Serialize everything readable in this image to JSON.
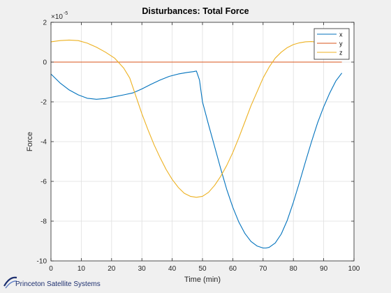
{
  "chart_data": {
    "type": "line",
    "title": "Disturbances: Total Force",
    "xlabel": "Time (min)",
    "ylabel": "Force",
    "y_exponent_label": "×10",
    "y_exponent_power": "-5",
    "xlim": [
      0,
      100
    ],
    "ylim": [
      -10,
      2
    ],
    "xticks": [
      0,
      10,
      20,
      30,
      40,
      50,
      60,
      70,
      80,
      90,
      100
    ],
    "yticks": [
      2,
      0,
      -2,
      -4,
      -6,
      -8,
      -10
    ],
    "grid": true,
    "legend_position": "top-right",
    "series": [
      {
        "name": "x",
        "color": "#0072bd",
        "points": [
          [
            0,
            -0.6
          ],
          [
            3,
            -1.05
          ],
          [
            6,
            -1.4
          ],
          [
            9,
            -1.65
          ],
          [
            12,
            -1.82
          ],
          [
            15,
            -1.87
          ],
          [
            18,
            -1.83
          ],
          [
            21,
            -1.74
          ],
          [
            24,
            -1.65
          ],
          [
            27,
            -1.55
          ],
          [
            30,
            -1.35
          ],
          [
            33,
            -1.12
          ],
          [
            36,
            -0.9
          ],
          [
            39,
            -0.72
          ],
          [
            42,
            -0.6
          ],
          [
            45,
            -0.52
          ],
          [
            47,
            -0.48
          ],
          [
            48,
            -0.45
          ],
          [
            49,
            -0.9
          ],
          [
            50,
            -2.0
          ],
          [
            52,
            -3.15
          ],
          [
            54,
            -4.25
          ],
          [
            56,
            -5.35
          ],
          [
            58,
            -6.4
          ],
          [
            60,
            -7.3
          ],
          [
            62,
            -8.05
          ],
          [
            64,
            -8.62
          ],
          [
            66,
            -9.02
          ],
          [
            68,
            -9.25
          ],
          [
            70,
            -9.35
          ],
          [
            71,
            -9.35
          ],
          [
            72,
            -9.32
          ],
          [
            74,
            -9.1
          ],
          [
            76,
            -8.65
          ],
          [
            78,
            -7.95
          ],
          [
            80,
            -7.05
          ],
          [
            82,
            -6.05
          ],
          [
            84,
            -5.0
          ],
          [
            86,
            -4.0
          ],
          [
            88,
            -3.05
          ],
          [
            90,
            -2.25
          ],
          [
            92,
            -1.55
          ],
          [
            94,
            -0.95
          ],
          [
            96,
            -0.55
          ]
        ]
      },
      {
        "name": "y",
        "color": "#d95319",
        "points": [
          [
            0,
            0.0
          ],
          [
            96,
            0.0
          ]
        ]
      },
      {
        "name": "z",
        "color": "#edb120",
        "points": [
          [
            0,
            1.02
          ],
          [
            3,
            1.08
          ],
          [
            6,
            1.11
          ],
          [
            9,
            1.08
          ],
          [
            12,
            0.95
          ],
          [
            15,
            0.75
          ],
          [
            18,
            0.5
          ],
          [
            21,
            0.2
          ],
          [
            24,
            -0.3
          ],
          [
            26,
            -0.8
          ],
          [
            28,
            -1.7
          ],
          [
            30,
            -2.6
          ],
          [
            32,
            -3.4
          ],
          [
            34,
            -4.15
          ],
          [
            36,
            -4.8
          ],
          [
            38,
            -5.4
          ],
          [
            40,
            -5.9
          ],
          [
            42,
            -6.3
          ],
          [
            44,
            -6.6
          ],
          [
            46,
            -6.75
          ],
          [
            48,
            -6.8
          ],
          [
            50,
            -6.75
          ],
          [
            52,
            -6.55
          ],
          [
            54,
            -6.2
          ],
          [
            56,
            -5.75
          ],
          [
            58,
            -5.2
          ],
          [
            60,
            -4.55
          ],
          [
            62,
            -3.8
          ],
          [
            64,
            -3.0
          ],
          [
            66,
            -2.2
          ],
          [
            68,
            -1.5
          ],
          [
            70,
            -0.8
          ],
          [
            72,
            -0.25
          ],
          [
            74,
            0.2
          ],
          [
            76,
            0.5
          ],
          [
            78,
            0.73
          ],
          [
            80,
            0.88
          ],
          [
            82,
            0.97
          ],
          [
            84,
            1.02
          ],
          [
            86,
            1.03
          ],
          [
            88,
            1.0
          ],
          [
            90,
            0.97
          ],
          [
            92,
            0.95
          ]
        ]
      }
    ]
  },
  "logo": {
    "text": "Princeton Satellite Systems"
  }
}
